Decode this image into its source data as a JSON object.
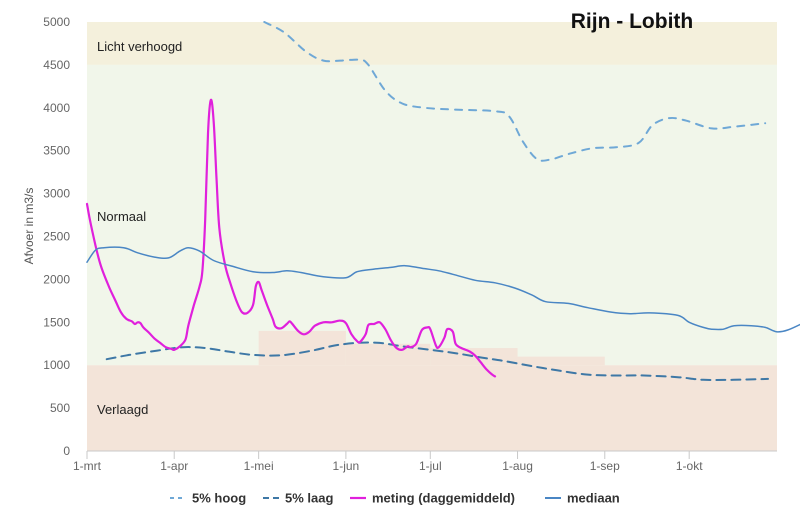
{
  "chart_data": {
    "type": "line",
    "title": "Rijn - Lobith",
    "ylabel": "Afvoer in m3/s",
    "xlabel": "",
    "ylim": [
      0,
      5000
    ],
    "xlim_days": [
      0,
      214
    ],
    "y_ticks": [
      0,
      500,
      1000,
      1500,
      2000,
      2500,
      3000,
      3500,
      4000,
      4500,
      5000
    ],
    "x_ticks": [
      {
        "label": "1-mrt",
        "day": 0
      },
      {
        "label": "1-apr",
        "day": 31
      },
      {
        "label": "1-mei",
        "day": 61
      },
      {
        "label": "1-jun",
        "day": 92
      },
      {
        "label": "1-jul",
        "day": 122
      },
      {
        "label": "1-aug",
        "day": 153
      },
      {
        "label": "1-sep",
        "day": 184
      },
      {
        "label": "1-okt",
        "day": 214
      }
    ],
    "bands": [
      {
        "label": "Licht verhoogd",
        "from": 4500,
        "to": 5000,
        "color": "#f4f0dc"
      },
      {
        "label": "Normaal",
        "from": 1000,
        "to": 4500,
        "color": "#f1f6ea"
      },
      {
        "label": "Verlaagd",
        "from": 0,
        "to": 1000,
        "color": "#f3e4d9"
      }
    ],
    "step_band": {
      "color": "#f3e4d9",
      "steps": [
        {
          "from_day": 61,
          "to_day": 92,
          "value": 1400
        },
        {
          "from_day": 92,
          "to_day": 122,
          "value": 1250
        },
        {
          "from_day": 122,
          "to_day": 153,
          "value": 1200
        },
        {
          "from_day": 153,
          "to_day": 184,
          "value": 1100
        }
      ]
    },
    "series": [
      {
        "name": "5% hoog",
        "color": "#6fa8d6",
        "style": "dashed-light",
        "points": [
          [
            63,
            5000
          ],
          [
            70,
            4880
          ],
          [
            78,
            4650
          ],
          [
            84,
            4550
          ],
          [
            90,
            4550
          ],
          [
            97,
            4560
          ],
          [
            100,
            4500
          ],
          [
            106,
            4200
          ],
          [
            112,
            4050
          ],
          [
            120,
            4000
          ],
          [
            130,
            3980
          ],
          [
            145,
            3960
          ],
          [
            150,
            3900
          ],
          [
            155,
            3600
          ],
          [
            160,
            3400
          ],
          [
            165,
            3400
          ],
          [
            172,
            3470
          ],
          [
            180,
            3530
          ],
          [
            188,
            3540
          ],
          [
            196,
            3590
          ],
          [
            201,
            3800
          ],
          [
            207,
            3880
          ],
          [
            213,
            3850
          ],
          [
            222,
            3760
          ],
          [
            230,
            3780
          ],
          [
            241,
            3820
          ]
        ]
      },
      {
        "name": "5% laag",
        "color": "#3e78a6",
        "style": "dashed",
        "points": [
          [
            7,
            1070
          ],
          [
            15,
            1120
          ],
          [
            25,
            1170
          ],
          [
            34,
            1210
          ],
          [
            42,
            1200
          ],
          [
            50,
            1160
          ],
          [
            59,
            1120
          ],
          [
            69,
            1115
          ],
          [
            80,
            1170
          ],
          [
            88,
            1230
          ],
          [
            96,
            1260
          ],
          [
            104,
            1260
          ],
          [
            112,
            1220
          ],
          [
            122,
            1180
          ],
          [
            131,
            1140
          ],
          [
            140,
            1090
          ],
          [
            148,
            1050
          ],
          [
            158,
            990
          ],
          [
            167,
            940
          ],
          [
            178,
            890
          ],
          [
            188,
            880
          ],
          [
            198,
            880
          ],
          [
            210,
            860
          ],
          [
            219,
            830
          ],
          [
            230,
            830
          ],
          [
            242,
            840
          ]
        ]
      },
      {
        "name": "meting (daggemiddeld)",
        "color": "#e020dc",
        "style": "solid",
        "points": [
          [
            0,
            2880
          ],
          [
            1,
            2700
          ],
          [
            3,
            2400
          ],
          [
            5,
            2150
          ],
          [
            8,
            1900
          ],
          [
            10,
            1760
          ],
          [
            12,
            1620
          ],
          [
            14,
            1540
          ],
          [
            16,
            1510
          ],
          [
            17,
            1480
          ],
          [
            18,
            1500
          ],
          [
            19,
            1490
          ],
          [
            20,
            1440
          ],
          [
            22,
            1380
          ],
          [
            24,
            1310
          ],
          [
            26,
            1260
          ],
          [
            28,
            1210
          ],
          [
            30,
            1190
          ],
          [
            31,
            1180
          ],
          [
            33,
            1220
          ],
          [
            35,
            1300
          ],
          [
            36,
            1460
          ],
          [
            38,
            1700
          ],
          [
            40,
            1920
          ],
          [
            41,
            2100
          ],
          [
            42,
            2700
          ],
          [
            43,
            3700
          ],
          [
            44,
            4090
          ],
          [
            45,
            3850
          ],
          [
            46,
            3200
          ],
          [
            47,
            2600
          ],
          [
            49,
            2180
          ],
          [
            51,
            1950
          ],
          [
            53,
            1760
          ],
          [
            55,
            1620
          ],
          [
            57,
            1610
          ],
          [
            59,
            1700
          ],
          [
            60,
            1920
          ],
          [
            61,
            1970
          ],
          [
            62,
            1880
          ],
          [
            64,
            1700
          ],
          [
            66,
            1540
          ],
          [
            67,
            1450
          ],
          [
            69,
            1430
          ],
          [
            71,
            1480
          ],
          [
            72,
            1510
          ],
          [
            73,
            1480
          ],
          [
            75,
            1400
          ],
          [
            77,
            1360
          ],
          [
            79,
            1390
          ],
          [
            81,
            1460
          ],
          [
            84,
            1500
          ],
          [
            87,
            1500
          ],
          [
            90,
            1520
          ],
          [
            92,
            1490
          ],
          [
            94,
            1360
          ],
          [
            96,
            1280
          ],
          [
            97,
            1270
          ],
          [
            99,
            1360
          ],
          [
            100,
            1470
          ],
          [
            102,
            1480
          ],
          [
            104,
            1500
          ],
          [
            106,
            1420
          ],
          [
            108,
            1290
          ],
          [
            110,
            1200
          ],
          [
            112,
            1180
          ],
          [
            114,
            1220
          ],
          [
            115,
            1210
          ],
          [
            117,
            1250
          ],
          [
            119,
            1410
          ],
          [
            121,
            1440
          ],
          [
            122,
            1420
          ],
          [
            124,
            1230
          ],
          [
            125,
            1210
          ],
          [
            127,
            1320
          ],
          [
            128,
            1420
          ],
          [
            130,
            1390
          ],
          [
            131,
            1250
          ],
          [
            133,
            1200
          ],
          [
            136,
            1160
          ],
          [
            138,
            1110
          ],
          [
            140,
            1030
          ],
          [
            142,
            950
          ],
          [
            144,
            890
          ],
          [
            145,
            870
          ]
        ]
      },
      {
        "name": "mediaan",
        "color": "#4a86c4",
        "style": "solid",
        "points": [
          [
            0,
            2200
          ],
          [
            3,
            2340
          ],
          [
            6,
            2370
          ],
          [
            13,
            2370
          ],
          [
            18,
            2310
          ],
          [
            24,
            2260
          ],
          [
            29,
            2250
          ],
          [
            33,
            2330
          ],
          [
            36,
            2370
          ],
          [
            40,
            2330
          ],
          [
            45,
            2220
          ],
          [
            52,
            2150
          ],
          [
            59,
            2090
          ],
          [
            66,
            2080
          ],
          [
            71,
            2100
          ],
          [
            76,
            2080
          ],
          [
            84,
            2030
          ],
          [
            92,
            2020
          ],
          [
            96,
            2090
          ],
          [
            102,
            2120
          ],
          [
            108,
            2140
          ],
          [
            113,
            2160
          ],
          [
            119,
            2130
          ],
          [
            125,
            2100
          ],
          [
            130,
            2060
          ],
          [
            138,
            1990
          ],
          [
            145,
            1960
          ],
          [
            152,
            1900
          ],
          [
            158,
            1820
          ],
          [
            163,
            1740
          ],
          [
            171,
            1720
          ],
          [
            178,
            1670
          ],
          [
            186,
            1620
          ],
          [
            193,
            1600
          ],
          [
            200,
            1610
          ],
          [
            210,
            1580
          ],
          [
            214,
            1500
          ],
          [
            219,
            1440
          ],
          [
            222,
            1420
          ],
          [
            226,
            1420
          ],
          [
            230,
            1460
          ],
          [
            236,
            1460
          ],
          [
            241,
            1440
          ],
          [
            245,
            1390
          ],
          [
            249,
            1410
          ],
          [
            255,
            1500
          ]
        ]
      }
    ],
    "legend_position": "bottom-center",
    "grid": false
  }
}
